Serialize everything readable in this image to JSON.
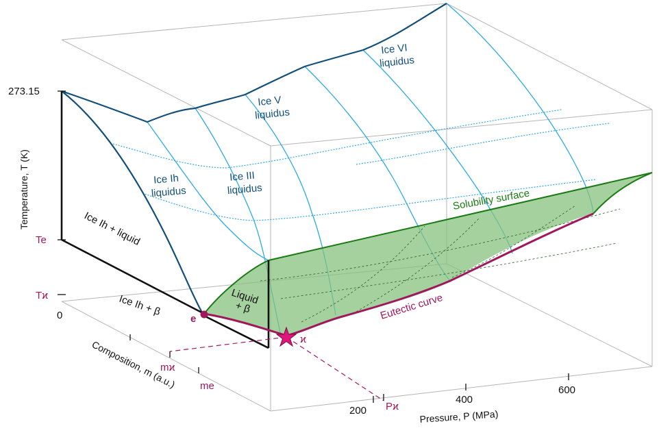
{
  "colors": {
    "box": "#b5b5b5",
    "liquidus_dark": "#114f7a",
    "liquidus_light": "#29a9e8",
    "eutectic": "#a0185c",
    "solubility_fill": "#86c17c",
    "solubility_edge": "#1a7a12",
    "black": "#111111"
  },
  "axes": {
    "temperature": {
      "title": "Temperature, T (K)",
      "ticks": [
        "273.15",
        "Te",
        "Tϰ"
      ]
    },
    "composition": {
      "title": "Composition, m (a.u.)",
      "ticks": [
        "0",
        "mϰ",
        "me"
      ]
    },
    "pressure": {
      "title": "Pressure, P (MPa)",
      "ticks": [
        "200",
        "400",
        "600"
      ],
      "special_tick": "Pϰ"
    }
  },
  "regions": {
    "ice_ih_liquidus": [
      "Ice Ih",
      "liquidus"
    ],
    "ice_iii_liquidus": [
      "Ice III",
      "liquidus"
    ],
    "ice_v_liquidus": [
      "Ice V",
      "liquidus"
    ],
    "ice_vi_liquidus": [
      "Ice VI",
      "liquidus"
    ],
    "ice_ih_plus_liquid": "Ice Ih + liquid",
    "ice_ih_plus_beta": "Ice Ih + β",
    "liquid_plus_beta": [
      "Liquid",
      "+ β"
    ],
    "solubility_surface": "Solubility surface",
    "eutectic_curve": "Eutectic curve"
  },
  "points": {
    "eutectic_point": "e",
    "kappa_point": "ϰ"
  }
}
